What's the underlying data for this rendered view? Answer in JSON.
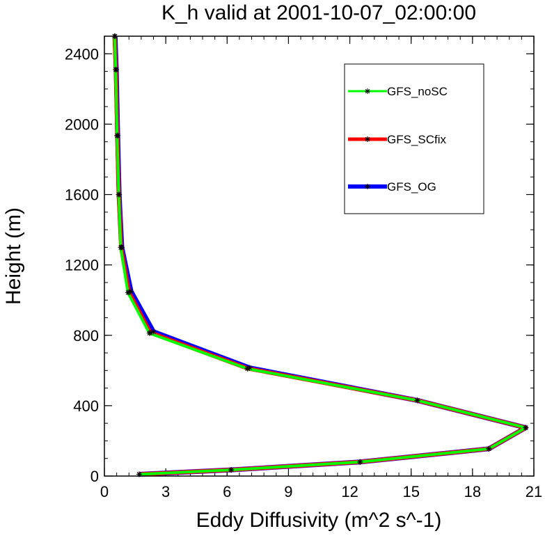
{
  "chart_data": {
    "type": "line",
    "title": "K_h valid at 2001-10-07_02:00:00",
    "xlabel": "Eddy Diffusivity (m^2 s^-1)",
    "ylabel": "Height (m)",
    "xlim": [
      0,
      21
    ],
    "ylim": [
      0,
      2500
    ],
    "xticks": [
      0,
      3,
      6,
      9,
      12,
      15,
      18,
      21
    ],
    "yticks": [
      0,
      400,
      800,
      1200,
      1600,
      2000,
      2400
    ],
    "grid": false,
    "legend_position": "top-right",
    "series": [
      {
        "name": "GFS_OG",
        "color": "#0000ff",
        "points": [
          {
            "x": 1.7,
            "y": 10
          },
          {
            "x": 6.2,
            "y": 35
          },
          {
            "x": 12.5,
            "y": 80
          },
          {
            "x": 18.8,
            "y": 155
          },
          {
            "x": 20.6,
            "y": 275
          },
          {
            "x": 15.3,
            "y": 430
          },
          {
            "x": 7.1,
            "y": 615
          },
          {
            "x": 2.4,
            "y": 820
          },
          {
            "x": 1.3,
            "y": 1050
          },
          {
            "x": 0.85,
            "y": 1300
          },
          {
            "x": 0.72,
            "y": 1600
          },
          {
            "x": 0.65,
            "y": 1935
          },
          {
            "x": 0.58,
            "y": 2310
          },
          {
            "x": 0.52,
            "y": 2500
          }
        ]
      },
      {
        "name": "GFS_SCfix",
        "color": "#ff0000",
        "points": [
          {
            "x": 1.7,
            "y": 10
          },
          {
            "x": 6.2,
            "y": 35
          },
          {
            "x": 12.5,
            "y": 80
          },
          {
            "x": 18.8,
            "y": 155
          },
          {
            "x": 20.6,
            "y": 275
          },
          {
            "x": 15.3,
            "y": 430
          },
          {
            "x": 7.0,
            "y": 612
          },
          {
            "x": 2.25,
            "y": 815
          },
          {
            "x": 1.2,
            "y": 1045
          },
          {
            "x": 0.82,
            "y": 1300
          },
          {
            "x": 0.7,
            "y": 1600
          },
          {
            "x": 0.63,
            "y": 1935
          },
          {
            "x": 0.56,
            "y": 2310
          },
          {
            "x": 0.5,
            "y": 2500
          }
        ]
      },
      {
        "name": "GFS_noSC",
        "color": "#00ff00",
        "points": [
          {
            "x": 1.7,
            "y": 10
          },
          {
            "x": 6.2,
            "y": 35
          },
          {
            "x": 12.5,
            "y": 80
          },
          {
            "x": 18.8,
            "y": 155
          },
          {
            "x": 20.6,
            "y": 275
          },
          {
            "x": 15.3,
            "y": 430
          },
          {
            "x": 7.0,
            "y": 610
          },
          {
            "x": 2.2,
            "y": 812
          },
          {
            "x": 1.15,
            "y": 1043
          },
          {
            "x": 0.8,
            "y": 1300
          },
          {
            "x": 0.7,
            "y": 1600
          },
          {
            "x": 0.62,
            "y": 1935
          },
          {
            "x": 0.55,
            "y": 2310
          },
          {
            "x": 0.5,
            "y": 2500
          }
        ]
      }
    ],
    "legend_order": [
      "GFS_noSC",
      "GFS_SCfix",
      "GFS_OG"
    ]
  }
}
